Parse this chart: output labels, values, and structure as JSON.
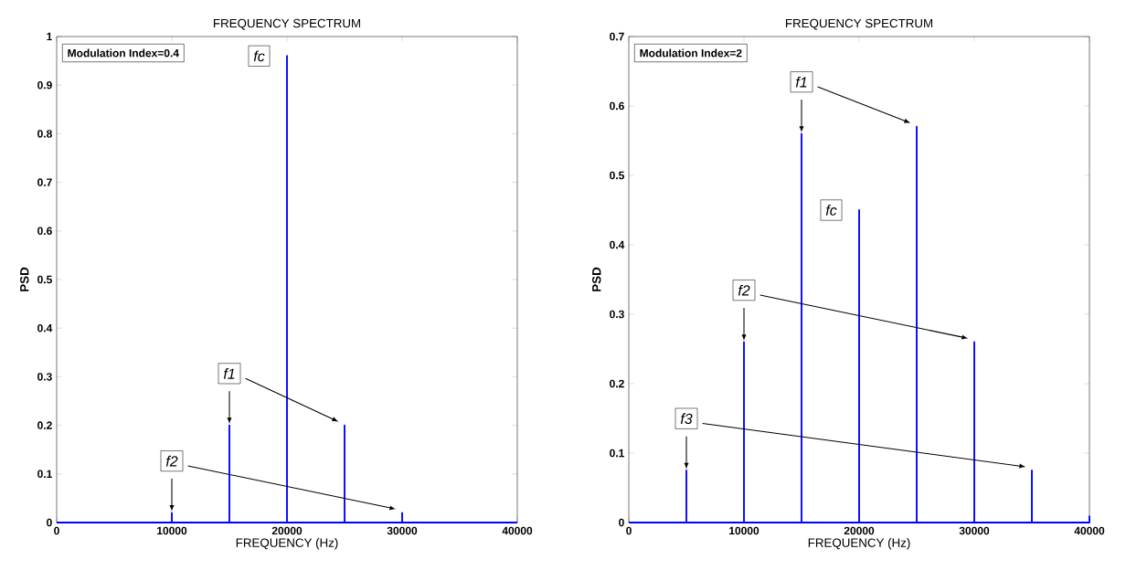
{
  "chart_data": [
    {
      "type": "line",
      "title": "FREQUENCY SPECTRUM",
      "xlabel": "FREQUENCY (Hz)",
      "ylabel": "PSD",
      "x": [
        0,
        10000,
        10000,
        10000,
        15000,
        15000,
        15000,
        20000,
        20000,
        20000,
        25000,
        25000,
        25000,
        30000,
        30000,
        30000,
        40000
      ],
      "series": [
        {
          "color": "#0000ff",
          "values": [
            0,
            0,
            0.02,
            0,
            0,
            0.2,
            0,
            0,
            0.96,
            0,
            0,
            0.2,
            0,
            0,
            0.02,
            0,
            0
          ]
        }
      ],
      "xlim": [
        0,
        40000
      ],
      "ylim": [
        0,
        1
      ],
      "xticks": [
        0,
        10000,
        20000,
        30000,
        40000
      ],
      "yticks": [
        0,
        0.1,
        0.2,
        0.3,
        0.4,
        0.5,
        0.6,
        0.7,
        0.8,
        0.9,
        1
      ],
      "annotations": [
        "Modulation Index=0.4",
        {
          "text": "fc",
          "x": 20000,
          "y": 0.96
        },
        {
          "text": "f1",
          "x": 15000,
          "y": 0.2
        },
        {
          "text": "f2",
          "x": 10000,
          "y": 0.02
        }
      ]
    },
    {
      "type": "line",
      "title": "FREQUENCY SPECTRUM",
      "xlabel": "FREQUENCY (Hz)",
      "ylabel": "PSD",
      "x": [
        0,
        5000,
        5000,
        5000,
        10000,
        10000,
        10000,
        15000,
        15000,
        15000,
        20000,
        20000,
        20000,
        25000,
        25000,
        25000,
        30000,
        30000,
        30000,
        35000,
        35000,
        35000,
        40000,
        40000
      ],
      "series": [
        {
          "color": "#0000ff",
          "values": [
            0,
            0,
            0.075,
            0,
            0,
            0.26,
            0,
            0,
            0.56,
            0,
            0,
            0.45,
            0,
            0,
            0.57,
            0,
            0,
            0.26,
            0,
            0,
            0.075,
            0,
            0,
            0.01
          ]
        }
      ],
      "xlim": [
        0,
        40000
      ],
      "ylim": [
        0,
        0.7
      ],
      "xticks": [
        0,
        10000,
        20000,
        30000,
        40000
      ],
      "yticks": [
        0,
        0.1,
        0.2,
        0.3,
        0.4,
        0.5,
        0.6,
        0.7
      ],
      "annotations": [
        "Modulation Index=2",
        {
          "text": "fc",
          "x": 20000,
          "y": 0.45
        },
        {
          "text": "f1",
          "x": 15000,
          "y": 0.56
        },
        {
          "text": "f2",
          "x": 10000,
          "y": 0.26
        },
        {
          "text": "f3",
          "x": 5000,
          "y": 0.075
        }
      ]
    }
  ]
}
